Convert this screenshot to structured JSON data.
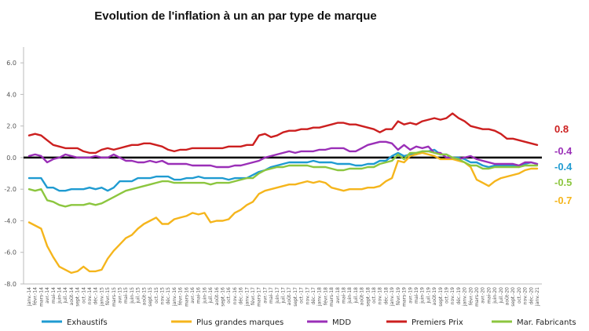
{
  "chart_data": {
    "type": "line",
    "title": "Evolution de l'inflation à un an par type de marque",
    "ylim": [
      -8,
      7
    ],
    "yticks": [
      "6.0",
      "4.0",
      "2.0",
      "0.0",
      "-2.0",
      "-4.0",
      "-6.0",
      "-8.0"
    ],
    "grid": false,
    "legend": "bottom",
    "x": [
      "janv.-14",
      "févr.-14",
      "mars-14",
      "avr.-14",
      "mai-14",
      "juin-14",
      "juil.-14",
      "août-14",
      "sept.-14",
      "oct.-14",
      "nov.-14",
      "déc.-14",
      "janv.-15",
      "févr.-15",
      "mars-15",
      "avr.-15",
      "mai-15",
      "juin-15",
      "juil.-15",
      "août-15",
      "sept.-15",
      "oct.-15",
      "nov.-15",
      "déc.-15",
      "janv.-16",
      "févr.-16",
      "mars-16",
      "avr.-16",
      "mai-16",
      "juin-16",
      "juil.-16",
      "août-16",
      "sept.-16",
      "oct.-16",
      "nov.-16",
      "déc.-16",
      "janv.-17",
      "févr.-17",
      "mars-17",
      "avr.-17",
      "mai-17",
      "juin-17",
      "juil.-17",
      "août-17",
      "sept.-17",
      "oct.-17",
      "nov.-17",
      "déc.-17",
      "janv.-18",
      "févr.-18",
      "mars-18",
      "avr.-18",
      "mai-18",
      "juin-18",
      "juil.-18",
      "août-18",
      "sept.-18",
      "oct.-18",
      "nov.-18",
      "déc.-18",
      "janv.-19",
      "févr.-19",
      "mars-19",
      "avr.-19",
      "mai-19",
      "juin-19",
      "juil.-19",
      "août-19",
      "sept.-19",
      "oct.-19",
      "nov.-19",
      "déc.-19",
      "janv.-20",
      "févr.-20",
      "mars-20",
      "avr.-20",
      "mai-20",
      "juin-20",
      "juil.-20",
      "août-20",
      "sept.-20",
      "oct.-20",
      "nov.-20",
      "déc.-20",
      "janv.-21"
    ],
    "series": [
      {
        "name": "Exhaustifs",
        "color": "#1f9bd1",
        "end_label": "-0.4",
        "values": [
          -1.3,
          -1.3,
          -1.3,
          -1.9,
          -1.9,
          -2.1,
          -2.1,
          -2.0,
          -2.0,
          -2.0,
          -1.9,
          -2.0,
          -1.9,
          -2.1,
          -1.9,
          -1.5,
          -1.5,
          -1.5,
          -1.3,
          -1.3,
          -1.3,
          -1.2,
          -1.2,
          -1.2,
          -1.4,
          -1.4,
          -1.3,
          -1.3,
          -1.2,
          -1.3,
          -1.3,
          -1.3,
          -1.3,
          -1.4,
          -1.3,
          -1.3,
          -1.3,
          -1.1,
          -0.9,
          -0.8,
          -0.6,
          -0.5,
          -0.4,
          -0.3,
          -0.3,
          -0.3,
          -0.3,
          -0.2,
          -0.3,
          -0.3,
          -0.3,
          -0.4,
          -0.4,
          -0.4,
          -0.5,
          -0.5,
          -0.4,
          -0.4,
          -0.2,
          -0.2,
          0.1,
          0.3,
          0.1,
          0.2,
          0.2,
          0.4,
          0.4,
          0.5,
          0.2,
          0.2,
          0.0,
          0.0,
          -0.1,
          -0.3,
          -0.3,
          -0.5,
          -0.6,
          -0.5,
          -0.5,
          -0.5,
          -0.5,
          -0.6,
          -0.4,
          -0.3,
          -0.4
        ]
      },
      {
        "name": "Plus grandes marques",
        "color": "#f5b51c",
        "end_label": "-0.7",
        "values": [
          -4.1,
          -4.3,
          -4.5,
          -5.6,
          -6.3,
          -6.9,
          -7.1,
          -7.3,
          -7.2,
          -6.9,
          -7.2,
          -7.2,
          -7.1,
          -6.4,
          -5.9,
          -5.5,
          -5.1,
          -4.9,
          -4.5,
          -4.2,
          -4.0,
          -3.8,
          -4.2,
          -4.2,
          -3.9,
          -3.8,
          -3.7,
          -3.5,
          -3.6,
          -3.5,
          -4.1,
          -4.0,
          -4.0,
          -3.9,
          -3.5,
          -3.3,
          -3.0,
          -2.8,
          -2.3,
          -2.1,
          -2.0,
          -1.9,
          -1.8,
          -1.7,
          -1.7,
          -1.6,
          -1.5,
          -1.6,
          -1.5,
          -1.6,
          -1.9,
          -2.0,
          -2.1,
          -2.0,
          -2.0,
          -2.0,
          -1.9,
          -1.9,
          -1.8,
          -1.5,
          -1.3,
          -0.2,
          -0.3,
          0.1,
          0.2,
          0.3,
          0.2,
          0.1,
          -0.1,
          -0.1,
          -0.1,
          -0.2,
          -0.3,
          -0.6,
          -1.4,
          -1.6,
          -1.8,
          -1.5,
          -1.3,
          -1.2,
          -1.1,
          -1.0,
          -0.8,
          -0.7,
          -0.7
        ]
      },
      {
        "name": "MDD",
        "color": "#9a2fb7",
        "end_label": "-0.4",
        "values": [
          0.1,
          0.2,
          0.1,
          -0.3,
          -0.1,
          0.0,
          0.2,
          0.1,
          0.0,
          0.0,
          0.0,
          0.1,
          0.0,
          0.0,
          0.2,
          0.0,
          -0.2,
          -0.2,
          -0.3,
          -0.3,
          -0.2,
          -0.3,
          -0.2,
          -0.4,
          -0.4,
          -0.4,
          -0.4,
          -0.5,
          -0.5,
          -0.5,
          -0.5,
          -0.6,
          -0.6,
          -0.6,
          -0.5,
          -0.5,
          -0.4,
          -0.3,
          -0.2,
          0.0,
          0.1,
          0.2,
          0.3,
          0.4,
          0.3,
          0.4,
          0.4,
          0.4,
          0.5,
          0.5,
          0.6,
          0.6,
          0.6,
          0.4,
          0.4,
          0.6,
          0.8,
          0.9,
          1.0,
          1.0,
          0.9,
          0.5,
          0.8,
          0.5,
          0.7,
          0.6,
          0.7,
          0.3,
          0.3,
          0.0,
          0.0,
          -0.1,
          0.0,
          0.1,
          -0.1,
          -0.2,
          -0.3,
          -0.4,
          -0.4,
          -0.4,
          -0.4,
          -0.5,
          -0.3,
          -0.3,
          -0.4
        ]
      },
      {
        "name": "Premiers Prix",
        "color": "#cc1f1f",
        "end_label": "0.8",
        "values": [
          1.4,
          1.5,
          1.4,
          1.1,
          0.8,
          0.7,
          0.6,
          0.6,
          0.6,
          0.4,
          0.3,
          0.3,
          0.5,
          0.6,
          0.5,
          0.6,
          0.7,
          0.8,
          0.8,
          0.9,
          0.9,
          0.8,
          0.7,
          0.5,
          0.4,
          0.5,
          0.5,
          0.6,
          0.6,
          0.6,
          0.6,
          0.6,
          0.6,
          0.7,
          0.7,
          0.7,
          0.8,
          0.8,
          1.4,
          1.5,
          1.3,
          1.4,
          1.6,
          1.7,
          1.7,
          1.8,
          1.8,
          1.9,
          1.9,
          2.0,
          2.1,
          2.2,
          2.2,
          2.1,
          2.1,
          2.0,
          1.9,
          1.8,
          1.6,
          1.8,
          1.8,
          2.3,
          2.1,
          2.2,
          2.1,
          2.3,
          2.4,
          2.5,
          2.4,
          2.5,
          2.8,
          2.5,
          2.3,
          2.0,
          1.9,
          1.8,
          1.8,
          1.7,
          1.5,
          1.2,
          1.2,
          1.1,
          1.0,
          0.9,
          0.8
        ]
      },
      {
        "name": "Mar. Fabricants",
        "color": "#8cc63f",
        "end_label": "-0.5",
        "values": [
          -2.0,
          -2.1,
          -2.0,
          -2.7,
          -2.8,
          -3.0,
          -3.1,
          -3.0,
          -3.0,
          -3.0,
          -2.9,
          -3.0,
          -2.9,
          -2.7,
          -2.5,
          -2.3,
          -2.1,
          -2.0,
          -1.9,
          -1.8,
          -1.7,
          -1.6,
          -1.5,
          -1.5,
          -1.6,
          -1.6,
          -1.6,
          -1.6,
          -1.6,
          -1.6,
          -1.7,
          -1.6,
          -1.6,
          -1.6,
          -1.5,
          -1.4,
          -1.3,
          -1.3,
          -1.0,
          -0.8,
          -0.7,
          -0.6,
          -0.6,
          -0.5,
          -0.5,
          -0.5,
          -0.5,
          -0.6,
          -0.6,
          -0.6,
          -0.7,
          -0.8,
          -0.8,
          -0.7,
          -0.7,
          -0.7,
          -0.6,
          -0.6,
          -0.4,
          -0.3,
          -0.2,
          0.2,
          -0.1,
          0.3,
          0.3,
          0.4,
          0.4,
          0.3,
          0.2,
          0.2,
          0.0,
          -0.1,
          -0.3,
          -0.5,
          -0.5,
          -0.7,
          -0.7,
          -0.6,
          -0.6,
          -0.6,
          -0.6,
          -0.6,
          -0.5,
          -0.5,
          -0.5
        ]
      }
    ]
  }
}
